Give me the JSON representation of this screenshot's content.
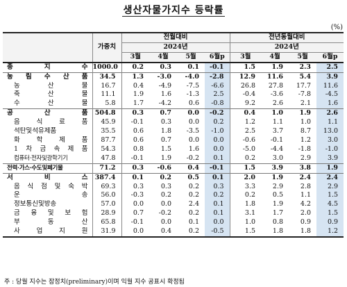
{
  "title": "생산자물가지수 등락률",
  "unit": "(%)",
  "header": {
    "weight": "가중치",
    "group1": "전월대비",
    "group2": "전년동월대비",
    "year": "2024년",
    "months": [
      "3월",
      "4월",
      "5월",
      "6월p"
    ]
  },
  "rows": [
    {
      "label": "총 지 수",
      "level": 0,
      "weight": "1000.0",
      "mom": [
        "0.2",
        "0.3",
        "0.1",
        "-0.1"
      ],
      "yoy": [
        "1.5",
        "1.9",
        "2.3",
        "2.5"
      ]
    },
    {
      "label": "농 림 수 산 품",
      "level": 0,
      "weight": "34.5",
      "mom": [
        "1.3",
        "-3.0",
        "-4.0",
        "-2.8"
      ],
      "yoy": [
        "12.9",
        "11.6",
        "5.4",
        "3.9"
      ]
    },
    {
      "label": "농 산 물",
      "level": 1,
      "weight": "16.7",
      "mom": [
        "0.4",
        "-4.9",
        "-7.5",
        "-6.6"
      ],
      "yoy": [
        "26.8",
        "27.8",
        "17.7",
        "11.6"
      ]
    },
    {
      "label": "축 산 물",
      "level": 1,
      "weight": "11.1",
      "mom": [
        "1.9",
        "1.6",
        "-1.3",
        "2.5"
      ],
      "yoy": [
        "-0.4",
        "-3.6",
        "-7.8",
        "-4.5"
      ]
    },
    {
      "label": "수 산 물",
      "level": 1,
      "weight": "5.8",
      "mom": [
        "1.7",
        "-4.2",
        "0.6",
        "-0.8"
      ],
      "yoy": [
        "9.2",
        "2.6",
        "2.1",
        "1.6"
      ]
    },
    {
      "label": "공 산 품",
      "level": 0,
      "weight": "504.8",
      "mom": [
        "0.3",
        "0.7",
        "0.0",
        "-0.2"
      ],
      "yoy": [
        "0.4",
        "1.0",
        "1.9",
        "2.6"
      ]
    },
    {
      "label": "음 식 료 품",
      "level": 1,
      "weight": "45.9",
      "mom": [
        "-0.1",
        "0.3",
        "0.0",
        "0.2"
      ],
      "yoy": [
        "1.2",
        "1.1",
        "1.0",
        "1.1"
      ]
    },
    {
      "label": "석탄및석유제품",
      "level": 1,
      "weight": "35.5",
      "mom": [
        "0.6",
        "1.8",
        "-3.5",
        "-1.0"
      ],
      "yoy": [
        "2.5",
        "3.7",
        "8.7",
        "13.0"
      ]
    },
    {
      "label": "화 학 제 품",
      "level": 1,
      "weight": "87.7",
      "mom": [
        "0.6",
        "0.7",
        "0.0",
        "0.0"
      ],
      "yoy": [
        "-0.6",
        "-0.1",
        "1.2",
        "3.0"
      ]
    },
    {
      "label": "1 차 금 속 제 품",
      "level": 1,
      "weight": "54.3",
      "mom": [
        "0.8",
        "1.5",
        "1.6",
        "0.0"
      ],
      "yoy": [
        "-5.0",
        "-4.4",
        "-1.8",
        "-1.0"
      ]
    },
    {
      "label": "컴퓨터·전자및광학기기",
      "level": 1,
      "weight": "47.8",
      "mom": [
        "-0.1",
        "1.9",
        "-0.2",
        "0.1"
      ],
      "yoy": [
        "0.2",
        "3.0",
        "2.9",
        "3.9"
      ]
    },
    {
      "label": "전력·가스·수도및폐기물",
      "level": 0,
      "weight": "71.2",
      "mom": [
        "0.3",
        "-0.6",
        "0.4",
        "-0.1"
      ],
      "yoy": [
        "1.5",
        "3.9",
        "3.8",
        "1.9"
      ]
    },
    {
      "label": "서 비 스",
      "level": 0,
      "weight": "387.4",
      "mom": [
        "0.1",
        "0.2",
        "0.5",
        "0.1"
      ],
      "yoy": [
        "2.0",
        "1.9",
        "2.4",
        "2.4"
      ]
    },
    {
      "label": "음 식 점 및 숙 박",
      "level": 1,
      "weight": "69.3",
      "mom": [
        "0.3",
        "0.3",
        "0.2",
        "0.3"
      ],
      "yoy": [
        "3.3",
        "2.9",
        "2.8",
        "2.9"
      ]
    },
    {
      "label": "운 송",
      "level": 1,
      "weight": "56.0",
      "mom": [
        "-0.3",
        "0.2",
        "0.2",
        "0.2"
      ],
      "yoy": [
        "0.2",
        "0.5",
        "1.1",
        "1.5"
      ]
    },
    {
      "label": "정보통신및방송",
      "level": 1,
      "weight": "57.0",
      "mom": [
        "0.0",
        "0.0",
        "2.4",
        "0.1"
      ],
      "yoy": [
        "1.8",
        "1.9",
        "4.2",
        "4.5"
      ]
    },
    {
      "label": "금 융 및 보 험",
      "level": 1,
      "weight": "28.9",
      "mom": [
        "0.7",
        "-0.2",
        "0.2",
        "0.1"
      ],
      "yoy": [
        "3.1",
        "1.7",
        "2.0",
        "1.5"
      ]
    },
    {
      "label": "부 동 산",
      "level": 1,
      "weight": "65.8",
      "mom": [
        "-0.1",
        "0.0",
        "0.1",
        "0.0"
      ],
      "yoy": [
        "1.0",
        "0.8",
        "0.9",
        "0.9"
      ]
    },
    {
      "label": "사 업 지 원",
      "level": 1,
      "weight": "31.9",
      "mom": [
        "0.0",
        "0.4",
        "0.2",
        "-0.5"
      ],
      "yoy": [
        "1.5",
        "1.8",
        "1.8",
        "1.2"
      ]
    }
  ],
  "footnote": "주 : 당월 지수는 잠정치(preliminary)이며 익월 지수 공표시 확정됨",
  "colors": {
    "highlight": "#d6e4f2",
    "header_bg": "#f3f3f3"
  }
}
